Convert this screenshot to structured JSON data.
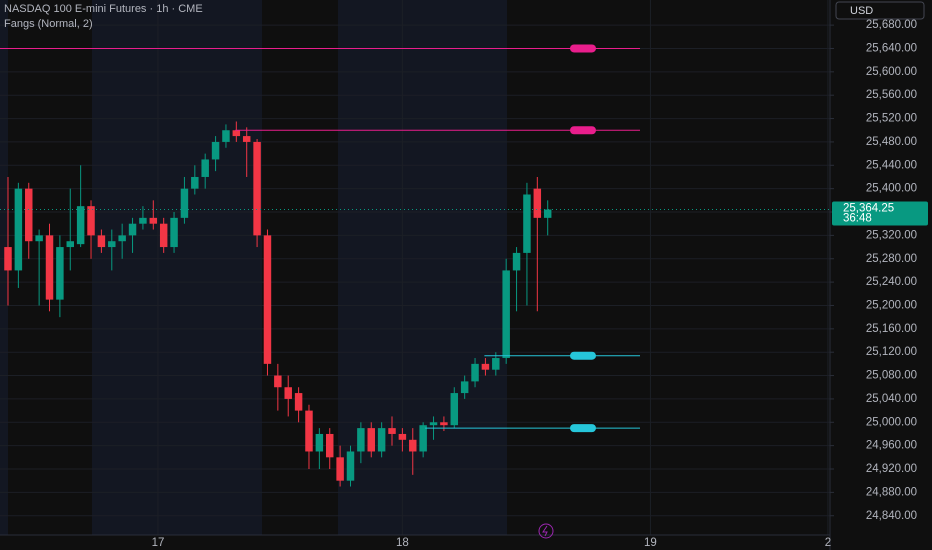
{
  "chart_data": {
    "type": "candlestick",
    "title": "NASDAQ 100 E-mini Futures · 1h · CME",
    "indicator": "Fangs (Normal, 2)",
    "currency": "USD",
    "up_color": "#089981",
    "down_color": "#f23645",
    "categories": [
      null,
      null,
      null,
      null,
      null,
      null,
      null,
      null,
      null,
      null,
      null,
      null,
      null,
      null,
      null,
      null,
      null,
      null,
      null,
      null,
      null,
      null,
      null,
      null,
      null,
      null,
      null,
      null,
      null,
      null,
      null,
      null,
      null,
      null,
      null,
      null,
      null,
      null,
      null,
      null,
      null,
      null,
      null,
      null,
      null,
      null,
      null,
      null,
      null,
      null,
      null,
      null,
      null
    ],
    "open": [
      25300,
      25260,
      25400,
      25310,
      25320,
      25210,
      25300,
      25305,
      25370,
      25320,
      25300,
      25310,
      25320,
      25340,
      25350,
      25340,
      25300,
      25350,
      25400,
      25420,
      25450,
      25480,
      25500,
      25490,
      25480,
      25320,
      25080,
      25060,
      25050,
      25020,
      24950,
      24980,
      24940,
      24900,
      24950,
      24990,
      24950,
      24990,
      24980,
      24970,
      24950,
      24995,
      25000,
      24995,
      25050,
      25070,
      25100,
      25090,
      25110,
      25260,
      25290,
      25400,
      25350
    ],
    "high": [
      25420,
      25410,
      25410,
      25330,
      25340,
      25320,
      25400,
      25440,
      25380,
      25330,
      25330,
      25340,
      25350,
      25370,
      25380,
      25350,
      25360,
      25420,
      25440,
      25460,
      25490,
      25510,
      25515,
      25505,
      25485,
      25330,
      25100,
      25080,
      25060,
      25030,
      24990,
      24990,
      24960,
      24960,
      25000,
      25000,
      25000,
      25010,
      24990,
      24990,
      25000,
      25010,
      25010,
      25060,
      25080,
      25110,
      25110,
      25120,
      25280,
      25300,
      25410,
      25420,
      25380
    ],
    "low": [
      25200,
      25230,
      25280,
      25200,
      25190,
      25180,
      25260,
      25300,
      25280,
      25290,
      25260,
      25280,
      25290,
      25330,
      25330,
      25290,
      25290,
      25340,
      25390,
      25400,
      25430,
      25470,
      25480,
      25420,
      25300,
      25080,
      25020,
      25010,
      25000,
      24920,
      24920,
      24920,
      24890,
      24890,
      24930,
      24940,
      24940,
      24960,
      24950,
      24910,
      24940,
      24970,
      24985,
      24990,
      25040,
      25060,
      25080,
      25080,
      25100,
      25190,
      25200,
      25190,
      25320
    ],
    "close": [
      25260,
      25400,
      25310,
      25320,
      25210,
      25300,
      25310,
      25370,
      25320,
      25300,
      25310,
      25320,
      25340,
      25350,
      25340,
      25300,
      25350,
      25400,
      25420,
      25450,
      25480,
      25500,
      25490,
      25480,
      25320,
      25100,
      25060,
      25040,
      25020,
      24950,
      24980,
      24940,
      24900,
      24950,
      24990,
      24950,
      24990,
      24980,
      24970,
      24950,
      24995,
      25000,
      24995,
      25050,
      25070,
      25100,
      25090,
      25110,
      25260,
      25290,
      25390,
      25350,
      25364.25
    ],
    "xlim": [
      -0.77,
      79.2
    ],
    "xticks": [
      {
        "value": 14.45,
        "label": "17"
      },
      {
        "value": 38.0,
        "label": "18"
      },
      {
        "value": 61.9,
        "label": "19"
      },
      {
        "value": 79.0,
        "label": "2"
      }
    ],
    "ylim": [
      24807,
      25723
    ],
    "yticks": [
      {
        "value": 24840,
        "label": "24,840.00"
      },
      {
        "value": 24880,
        "label": "24,880.00"
      },
      {
        "value": 24920,
        "label": "24,920.00"
      },
      {
        "value": 24960,
        "label": "24,960.00"
      },
      {
        "value": 25000,
        "label": "25,000.00"
      },
      {
        "value": 25040,
        "label": "25,040.00"
      },
      {
        "value": 25080,
        "label": "25,080.00"
      },
      {
        "value": 25120,
        "label": "25,120.00"
      },
      {
        "value": 25160,
        "label": "25,160.00"
      },
      {
        "value": 25200,
        "label": "25,200.00"
      },
      {
        "value": 25240,
        "label": "25,240.00"
      },
      {
        "value": 25280,
        "label": "25,280.00"
      },
      {
        "value": 25320,
        "label": "25,320.00"
      },
      {
        "value": 25360,
        "label": "25,360.00"
      },
      {
        "value": 25400,
        "label": "25,400.00"
      },
      {
        "value": 25440,
        "label": "25,440.00"
      },
      {
        "value": 25480,
        "label": "25,480.00"
      },
      {
        "value": 25520,
        "label": "25,520.00"
      },
      {
        "value": 25560,
        "label": "25,560.00"
      },
      {
        "value": 25600,
        "label": "25,600.00"
      },
      {
        "value": 25640,
        "label": "25,640.00"
      },
      {
        "value": 25680,
        "label": "25,680.00"
      }
    ],
    "grid": true,
    "levels": [
      {
        "value": 25640,
        "start": -0.77,
        "color": "#e91e8c"
      },
      {
        "value": 25500,
        "start": 21.9,
        "color": "#e91e8c"
      },
      {
        "value": 25114,
        "start": 45.9,
        "color": "#26c6da"
      },
      {
        "value": 24990,
        "start": 40.2,
        "color": "#26c6da"
      }
    ],
    "last_price": {
      "value": 25364.25,
      "label": "25,364.25"
    },
    "countdown": "36:48"
  }
}
